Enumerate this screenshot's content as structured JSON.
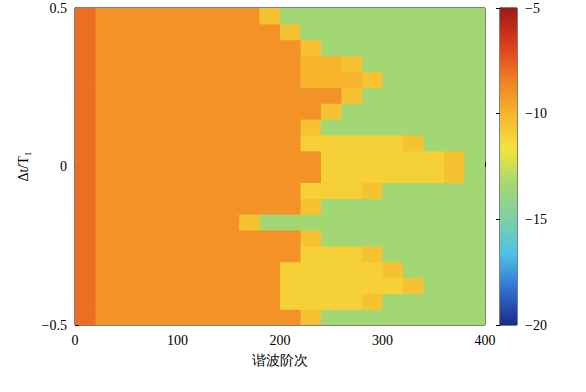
{
  "chart_data": {
    "type": "heatmap",
    "x_label": "谐波阶次",
    "y_label": "Δt/T₁",
    "xlim": [
      0,
      400
    ],
    "xticks": [
      0,
      100,
      200,
      300,
      400
    ],
    "ylim": [
      -0.5,
      0.5
    ],
    "yticks": [
      {
        "value": -0.5,
        "label": "−0.5"
      },
      0,
      0.5
    ],
    "x_edges": [
      0,
      20,
      40,
      60,
      80,
      100,
      120,
      140,
      160,
      180,
      200,
      220,
      240,
      260,
      280,
      300,
      320,
      340,
      360,
      380,
      400
    ],
    "y_edges": [
      -0.5,
      -0.45,
      -0.4,
      -0.35,
      -0.3,
      -0.25,
      -0.2,
      -0.15,
      -0.1,
      -0.05,
      0,
      0.05,
      0.1,
      0.15,
      0.2,
      0.25,
      0.3,
      0.35,
      0.4,
      0.45,
      0.5
    ],
    "z": [
      [
        -8,
        -9,
        -9,
        -9,
        -9,
        -9,
        -9,
        -9,
        -9,
        -9,
        -9,
        -10.5,
        -13.5,
        -13.5,
        -13.5,
        -13.5,
        -13.5,
        -13.5,
        -13.5,
        -13.5
      ],
      [
        -8,
        -9,
        -9,
        -9,
        -9,
        -9,
        -9,
        -9,
        -9,
        -9,
        -11,
        -11,
        -11,
        -11,
        -10.5,
        -13.5,
        -13.5,
        -13.5,
        -13.5,
        -13.5
      ],
      [
        -8,
        -9,
        -9,
        -9,
        -9,
        -9,
        -9,
        -9,
        -9,
        -9,
        -11,
        -11,
        -11,
        -11,
        -11,
        -11,
        -10.5,
        -13.5,
        -13.5,
        -13.5
      ],
      [
        -8,
        -9,
        -9,
        -9,
        -9,
        -9,
        -9,
        -9,
        -9,
        -9,
        -11,
        -11,
        -11,
        -11,
        -11,
        -10.5,
        -13.5,
        -13.5,
        -13.5,
        -13.5
      ],
      [
        -8,
        -9,
        -9,
        -9,
        -9,
        -9,
        -9,
        -9,
        -9,
        -9,
        -9,
        -11,
        -11,
        -11,
        -10.5,
        -13.5,
        -13.5,
        -13.5,
        -13.5,
        -13.5
      ],
      [
        -8,
        -9,
        -9,
        -9,
        -9,
        -9,
        -9,
        -9,
        -9,
        -9,
        -9,
        -10.5,
        -13.5,
        -13.5,
        -13.5,
        -13.5,
        -13.5,
        -13.5,
        -13.5,
        -13.5
      ],
      [
        -8,
        -9,
        -9,
        -9,
        -9,
        -9,
        -9,
        -9,
        -10.5,
        -13.5,
        -13.5,
        -13.5,
        -13.5,
        -13.5,
        -13.5,
        -13.5,
        -13.5,
        -13.5,
        -13.5,
        -13.5
      ],
      [
        -8,
        -9,
        -9,
        -9,
        -9,
        -9,
        -9,
        -9,
        -9,
        -9,
        -9,
        -10.5,
        -13.5,
        -13.5,
        -13.5,
        -13.5,
        -13.5,
        -13.5,
        -13.5,
        -13.5
      ],
      [
        -8,
        -9,
        -9,
        -9,
        -9,
        -9,
        -9,
        -9,
        -9,
        -9,
        -9,
        -11,
        -11,
        -11,
        -10.5,
        -13.5,
        -13.5,
        -13.5,
        -13.5,
        -13.5
      ],
      [
        -8,
        -9,
        -9,
        -9,
        -9,
        -9,
        -9,
        -9,
        -9,
        -9,
        -9,
        -9,
        -11,
        -11,
        -11,
        -11,
        -11,
        -11,
        -10.5,
        -13.5
      ],
      [
        -8,
        -9,
        -9,
        -9,
        -9,
        -9,
        -9,
        -9,
        -9,
        -9,
        -9,
        -9,
        -11,
        -11,
        -11,
        -11,
        -11,
        -11,
        -10.5,
        -13.5
      ],
      [
        -8,
        -9,
        -9,
        -9,
        -9,
        -9,
        -9,
        -9,
        -9,
        -9,
        -9,
        -11,
        -11,
        -11,
        -11,
        -11,
        -10.5,
        -13.5,
        -13.5,
        -13.5
      ],
      [
        -8,
        -9,
        -9,
        -9,
        -9,
        -9,
        -9,
        -9,
        -9,
        -9,
        -9,
        -10.5,
        -13.5,
        -13.5,
        -13.5,
        -13.5,
        -13.5,
        -13.5,
        -13.5,
        -13.5
      ],
      [
        -8,
        -9,
        -9,
        -9,
        -9,
        -9,
        -9,
        -9,
        -9,
        -9,
        -9,
        -9,
        -10.5,
        -13.5,
        -13.5,
        -13.5,
        -13.5,
        -13.5,
        -13.5,
        -13.5
      ],
      [
        -8,
        -9,
        -9,
        -9,
        -9,
        -9,
        -9,
        -9,
        -9,
        -9,
        -9,
        -9,
        -9,
        -10.5,
        -13.5,
        -13.5,
        -13.5,
        -13.5,
        -13.5,
        -13.5
      ],
      [
        -8,
        -9,
        -9,
        -9,
        -9,
        -9,
        -9,
        -9,
        -9,
        -9,
        -9,
        -10,
        -10,
        -10,
        -10.5,
        -13.5,
        -13.5,
        -13.5,
        -13.5,
        -13.5
      ],
      [
        -8,
        -9,
        -9,
        -9,
        -9,
        -9,
        -9,
        -9,
        -9,
        -9,
        -9,
        -10,
        -10,
        -10.5,
        -13.5,
        -13.5,
        -13.5,
        -13.5,
        -13.5,
        -13.5
      ],
      [
        -8,
        -9,
        -9,
        -9,
        -9,
        -9,
        -9,
        -9,
        -9,
        -9,
        -9,
        -10.5,
        -13.5,
        -13.5,
        -13.5,
        -13.5,
        -13.5,
        -13.5,
        -13.5,
        -13.5
      ],
      [
        -8,
        -9,
        -9,
        -9,
        -9,
        -9,
        -9,
        -9,
        -9,
        -9,
        -10.5,
        -13.5,
        -13.5,
        -13.5,
        -13.5,
        -13.5,
        -13.5,
        -13.5,
        -13.5,
        -13.5
      ],
      [
        -8,
        -9,
        -9,
        -9,
        -9,
        -9,
        -9,
        -9,
        -9,
        -10.5,
        -13.5,
        -13.5,
        -13.5,
        -13.5,
        -13.5,
        -13.5,
        -13.5,
        -13.5,
        -13.5,
        -13.5
      ]
    ],
    "colorbar_range": [
      -20,
      -5
    ],
    "colorbar_ticks": [
      {
        "value": -20,
        "label": "−20"
      },
      {
        "value": -15,
        "label": "−15"
      },
      {
        "value": -10,
        "label": "−10"
      },
      {
        "value": -5,
        "label": "−5"
      }
    ]
  }
}
